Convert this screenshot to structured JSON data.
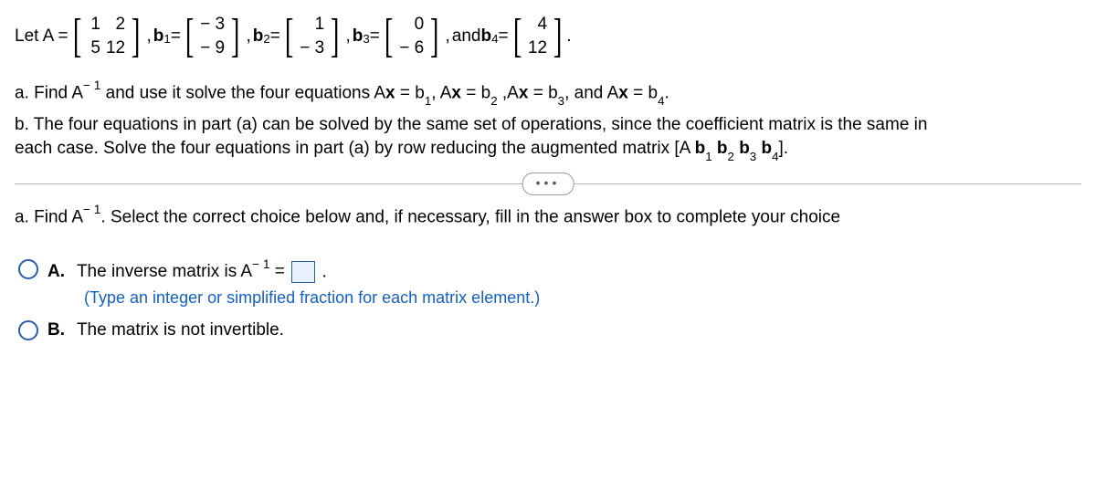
{
  "problem": {
    "let_prefix": "Let A =",
    "A": {
      "r1c1": "1",
      "r1c2": "2",
      "r2c1": "5",
      "r2c2": "12"
    },
    "b1_label": "b",
    "b1_sub": "1",
    "eq": " =",
    "b1": {
      "r1": "− 3",
      "r2": "− 9"
    },
    "b2_label": "b",
    "b2_sub": "2",
    "b2": {
      "r1": "1",
      "r2": "− 3"
    },
    "b3_label": "b",
    "b3_sub": "3",
    "b3": {
      "r1": "0",
      "r2": "− 6"
    },
    "and_label": "and ",
    "b4_label": "b",
    "b4_sub": "4",
    "b4": {
      "r1": "4",
      "r2": "12"
    },
    "period": "."
  },
  "partA_top": {
    "prefix": "a. Find A",
    "exp": "− 1",
    "rest": " and use it solve the four equations A",
    "x": "x",
    "eqb1": " = b",
    "s1": "1",
    "c1": ", A",
    "eqb2": " = b",
    "s2": "2",
    "c2": " ,A",
    "eqb3": " = b",
    "s3": "3",
    "c3": ", and A",
    "eqb4": " = b",
    "s4": "4",
    "end": "."
  },
  "partB": {
    "text1": "b. The four equations in part (a) can be solved by the same set of operations, since the coefficient matrix is the same in",
    "text2": "each case. Solve the four equations in part (a) by row reducing the augmented matrix [A ",
    "b": "b",
    "s1": "1",
    "sp1": " ",
    "s2": "2",
    "sp2": " ",
    "s3": "3",
    "sp3": " ",
    "s4": "4",
    "end": "]."
  },
  "dots": "•••",
  "partA_prompt": {
    "prefix": "a. Find A",
    "exp": "− 1",
    "rest": ". Select the correct choice below and, if necessary, fill in the answer box to complete your choice"
  },
  "choiceA": {
    "label": "A.",
    "text1": "The inverse matrix is A",
    "exp": "− 1",
    "text2": " = ",
    "period": ".",
    "hint": "(Type an integer or simplified fraction for each matrix element.)"
  },
  "choiceB": {
    "label": "B.",
    "text": "The matrix is not invertible."
  }
}
